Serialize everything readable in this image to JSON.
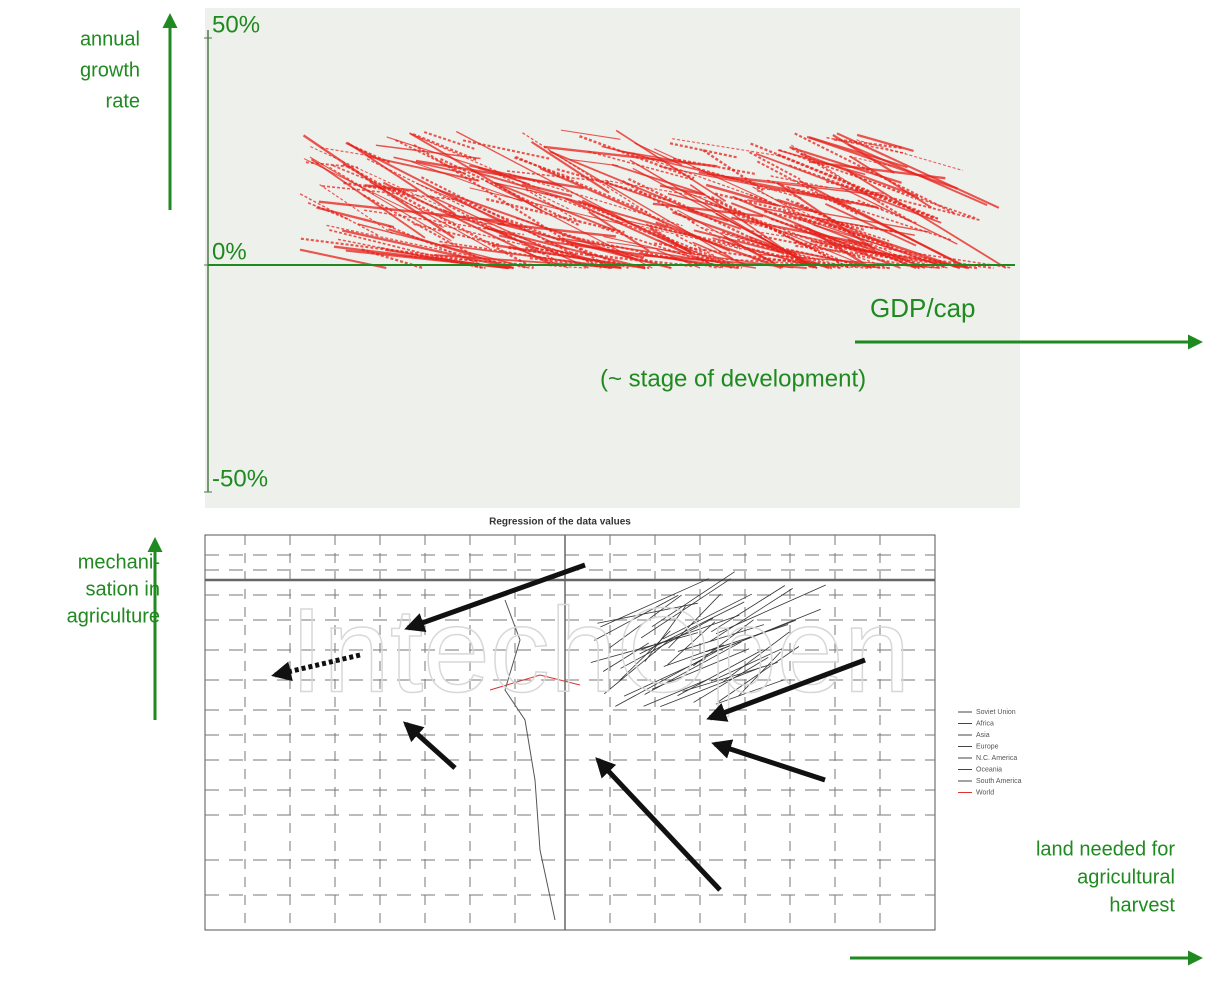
{
  "chart_data": [
    {
      "type": "line",
      "y_label": [
        "annual",
        "growth",
        "rate"
      ],
      "x_label": "GDP/cap",
      "annotation": "(~ stage of development)",
      "ylim": [
        -50,
        50
      ],
      "yticks": [
        {
          "value": 50,
          "label": "50%"
        },
        {
          "value": 0,
          "label": "0%"
        },
        {
          "value": -50,
          "label": "-50%"
        }
      ]
    },
    {
      "type": "line",
      "title": "Regression of the data values",
      "y_label": [
        "mechani-",
        "sation in",
        "agriculture"
      ],
      "x_label": [
        "land needed for",
        "agricultural",
        "harvest"
      ],
      "legend": [
        "Soviet Union",
        "Africa",
        "Asia",
        "Europe",
        "N.C. America",
        "Oceania",
        "South America",
        "World"
      ],
      "watermark": "IntechOpen"
    }
  ]
}
